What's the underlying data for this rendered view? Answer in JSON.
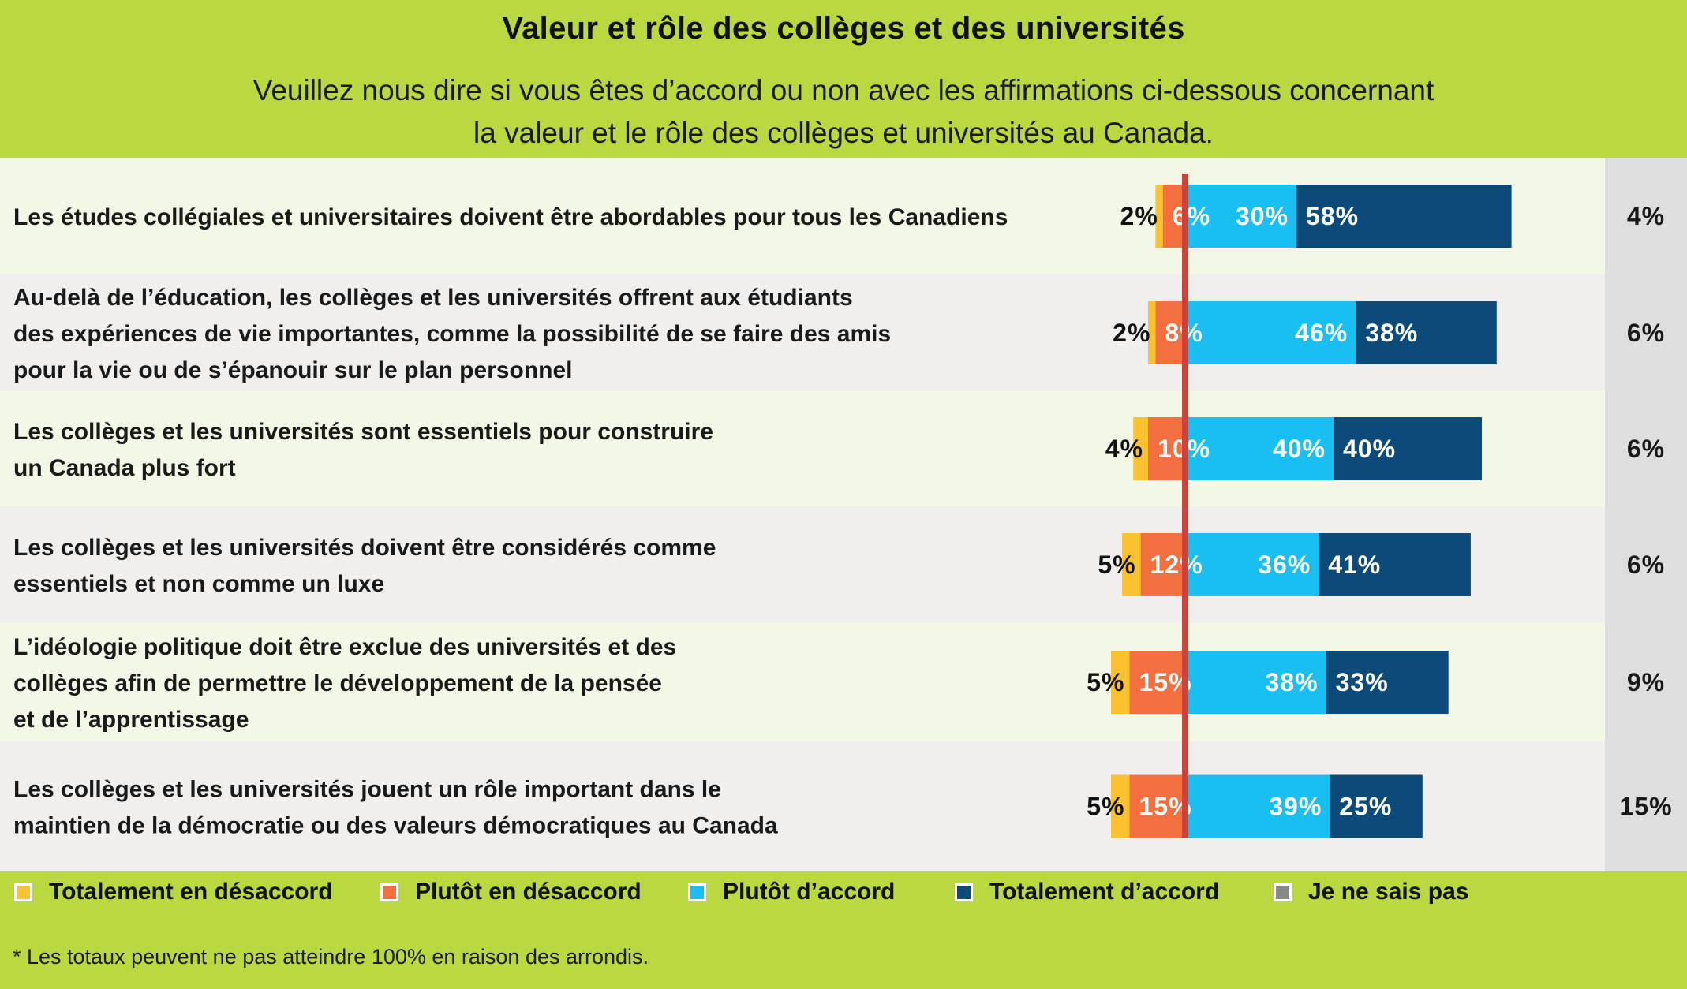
{
  "title": "Valeur et rôle des collèges et des universités",
  "subtitle_line1": "Veuillez nous dire si vous êtes d’accord ou non avec les affirmations ci-dessous concernant",
  "subtitle_line2": "la valeur et le rôle des collèges et universités au Canada.",
  "footnote": "* Les totaux peuvent ne pas atteindre 100% en raison des arrondis.",
  "colors": {
    "totalement_desaccord": "#fcc12e",
    "plutot_desaccord": "#f36f40",
    "plutot_accord": "#19bff0",
    "totalement_accord": "#0c4a79",
    "je_ne_sais_pas": "#888888",
    "center_line": "#d0413a",
    "row_light": "#f3f8e6",
    "row_gray": "#f0efee",
    "dk_column": "#dedede",
    "page_background": "#bad840"
  },
  "chart_data": {
    "type": "bar",
    "orientation": "horizontal",
    "stacking": "diverging",
    "series": [
      {
        "key": "totalement_desaccord",
        "name": "Totalement en désaccord",
        "values": [
          2,
          2,
          4,
          5,
          5,
          5
        ]
      },
      {
        "key": "plutot_desaccord",
        "name": "Plutôt en désaccord",
        "values": [
          6,
          8,
          10,
          12,
          15,
          15
        ]
      },
      {
        "key": "plutot_accord",
        "name": "Plutôt d’accord",
        "values": [
          30,
          46,
          40,
          36,
          38,
          39
        ]
      },
      {
        "key": "totalement_accord",
        "name": "Totalement d’accord",
        "values": [
          58,
          38,
          40,
          41,
          33,
          25
        ]
      },
      {
        "key": "je_ne_sais_pas",
        "name": "Je ne sais pas",
        "values": [
          4,
          6,
          6,
          6,
          9,
          15
        ]
      }
    ],
    "categories": [
      [
        "Les études collégiales et universitaires doivent être abordables pour tous les Canadiens"
      ],
      [
        "Au-delà de l’éducation, les collèges et les universités offrent aux étudiants",
        "des expériences de vie importantes, comme la possibilité de se faire des amis",
        "pour la vie ou de s’épanouir sur le plan personnel"
      ],
      [
        "Les collèges et les universités sont essentiels pour construire",
        "un Canada plus fort"
      ],
      [
        "Les collèges et les universités doivent être considérés comme",
        "essentiels et non comme un luxe"
      ],
      [
        "L’idéologie politique doit être exclue des universités et des",
        "collèges afin de permettre le développement de la pensée",
        "et de l’apprentissage"
      ],
      [
        "Les collèges et les universités jouent un rôle important dans le",
        "maintien de la démocratie ou des valeurs démocratiques au Canada"
      ]
    ],
    "value_suffix": "%",
    "legend_position": "bottom"
  },
  "legend": [
    {
      "key": "totalement_desaccord",
      "label": "Totalement en désaccord"
    },
    {
      "key": "plutot_desaccord",
      "label": "Plutôt en désaccord"
    },
    {
      "key": "plutot_accord",
      "label": "Plutôt d’accord"
    },
    {
      "key": "totalement_accord",
      "label": "Totalement d’accord"
    },
    {
      "key": "je_ne_sais_pas",
      "label": "Je ne sais pas"
    }
  ]
}
